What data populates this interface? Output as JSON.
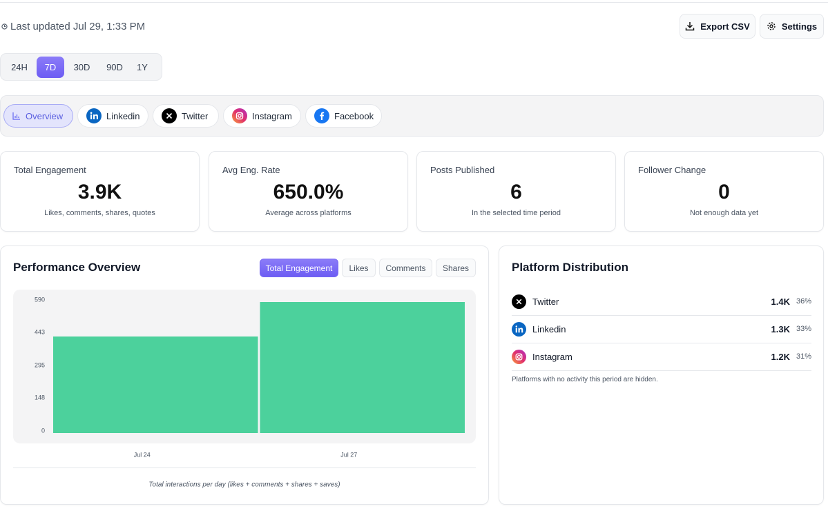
{
  "header": {
    "last_updated": "Last updated Jul 29, 1:33 PM",
    "actions": [
      "Export CSV",
      "Settings"
    ]
  },
  "time_ranges": {
    "options": [
      "24H",
      "7D",
      "30D",
      "90D",
      "1Y"
    ],
    "active": 1
  },
  "platform_tabs": {
    "options": [
      "Overview",
      "Linkedin",
      "Twitter",
      "Instagram",
      "Facebook"
    ],
    "active": 0
  },
  "stats": [
    {
      "label": "Total Engagement",
      "value": "3.9K",
      "note": "Likes, comments, shares, quotes"
    },
    {
      "label": "Avg Eng. Rate",
      "value": "650.0%",
      "note": "Average across platforms"
    },
    {
      "label": "Posts Published",
      "value": "6",
      "note": "In the selected time period"
    },
    {
      "label": "Follower Change",
      "value": "0",
      "note": "Not enough data yet"
    }
  ],
  "performance": {
    "title": "Performance Overview",
    "metric_tabs": [
      "Total Engagement",
      "Likes",
      "Comments",
      "Shares"
    ],
    "active_tab": 0,
    "caption": "Total interactions per day (likes + comments + shares + saves)"
  },
  "chart_data": {
    "type": "bar",
    "categories": [
      "Jul 24",
      "Jul 27"
    ],
    "values": [
      435,
      590
    ],
    "color": "#4cd19c",
    "ylim": [
      0,
      590
    ],
    "yticks": [
      0,
      148,
      295,
      443,
      590
    ],
    "grid": false
  },
  "distribution": {
    "title": "Platform Distribution",
    "rows": [
      {
        "platform": "Twitter",
        "total": "1.4K",
        "share": "36%"
      },
      {
        "platform": "Linkedin",
        "total": "1.3K",
        "share": "33%"
      },
      {
        "platform": "Instagram",
        "total": "1.2K",
        "share": "31%"
      }
    ],
    "note": "Platforms with no activity this period are hidden."
  }
}
